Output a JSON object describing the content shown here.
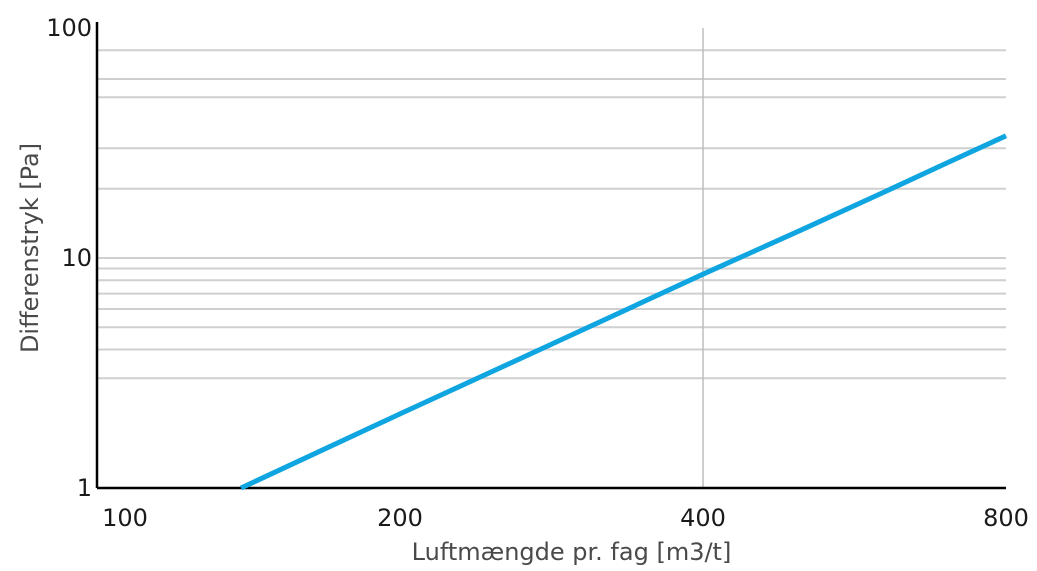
{
  "chart_data": {
    "type": "line",
    "title": "",
    "xlabel": "Luftmængde pr. fag [m3/t]",
    "ylabel": "Differenstryk [Pa]",
    "x_scale": "log",
    "y_scale": "log",
    "xlim": [
      100,
      800
    ],
    "ylim": [
      1,
      100
    ],
    "x_ticks": [
      100,
      200,
      400,
      800
    ],
    "x_tick_labels": [
      "100",
      "200",
      "400",
      "800"
    ],
    "y_ticks": [
      1,
      10,
      100
    ],
    "y_tick_labels": [
      "1",
      "10",
      "100"
    ],
    "grid": true,
    "y_gridlines": [
      3,
      4,
      5,
      6,
      7,
      8,
      9,
      10,
      20,
      30,
      50,
      60,
      80
    ],
    "x_gridlines": [
      400
    ],
    "legend": "none",
    "series": [
      {
        "color": "#0ea5e0",
        "x": [
          139,
          200,
          300,
          400,
          500,
          600,
          700,
          800
        ],
        "y": [
          1.0,
          2.1,
          4.75,
          8.5,
          13.2,
          19.0,
          26.0,
          34.0
        ]
      }
    ]
  }
}
